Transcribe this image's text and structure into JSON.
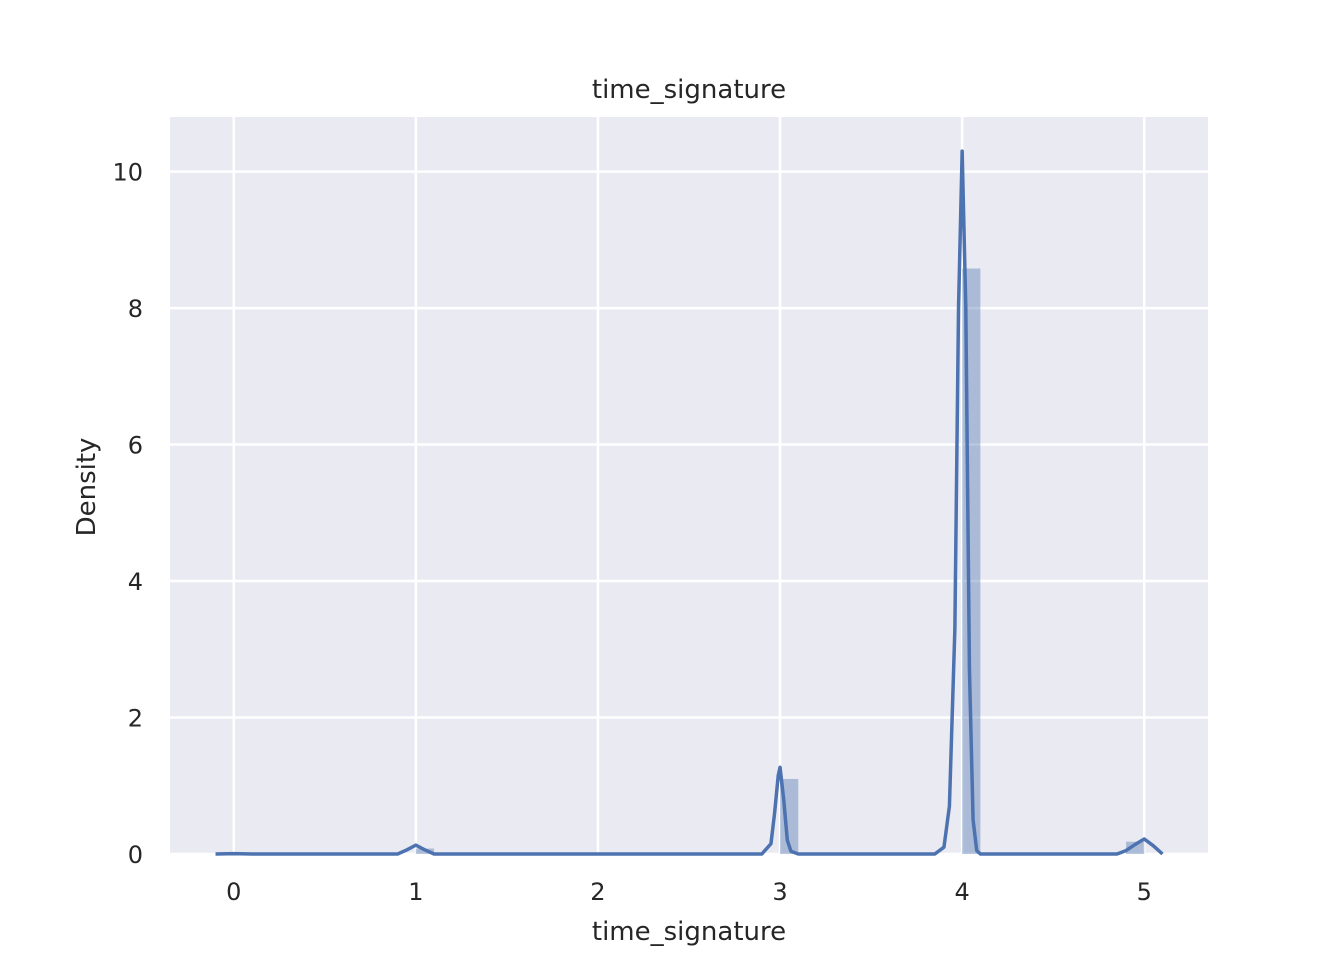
{
  "chart_data": {
    "type": "histogram_kde",
    "title": "time_signature",
    "xlabel": "time_signature",
    "ylabel": "Density",
    "xlim": [
      -0.35,
      5.35
    ],
    "ylim": [
      0,
      10.8
    ],
    "xticks": [
      0,
      1,
      2,
      3,
      4,
      5
    ],
    "yticks": [
      0,
      2,
      4,
      6,
      8,
      10
    ],
    "grid": true,
    "colors": {
      "background": "#eaeaf2",
      "grid": "#ffffff",
      "bar_fill": "#4c72b0",
      "line": "#4c72b0"
    },
    "histogram": {
      "bins": [
        {
          "x0": 1.0,
          "x1": 1.1,
          "density": 0.08
        },
        {
          "x0": 3.0,
          "x1": 3.1,
          "density": 1.1
        },
        {
          "x0": 4.0,
          "x1": 4.1,
          "density": 8.58
        },
        {
          "x0": 4.9,
          "x1": 5.0,
          "density": 0.18
        }
      ]
    },
    "kde": {
      "x": [
        -0.1,
        0.0,
        0.1,
        0.9,
        0.95,
        1.0,
        1.05,
        1.1,
        1.15,
        2.9,
        2.95,
        2.97,
        2.99,
        3.0,
        3.02,
        3.04,
        3.06,
        3.1,
        3.85,
        3.9,
        3.93,
        3.96,
        3.98,
        4.0,
        4.02,
        4.04,
        4.06,
        4.08,
        4.1,
        4.2,
        4.85,
        4.9,
        4.95,
        5.0,
        5.05,
        5.1
      ],
      "y": [
        0.0,
        0.005,
        0.0,
        0.0,
        0.06,
        0.13,
        0.06,
        0.0,
        0.0,
        0.0,
        0.15,
        0.6,
        1.15,
        1.27,
        0.8,
        0.2,
        0.04,
        0.0,
        0.0,
        0.1,
        0.7,
        3.3,
        8.0,
        10.3,
        8.0,
        2.7,
        0.5,
        0.05,
        0.0,
        0.0,
        0.0,
        0.05,
        0.14,
        0.22,
        0.12,
        0.0
      ]
    }
  }
}
